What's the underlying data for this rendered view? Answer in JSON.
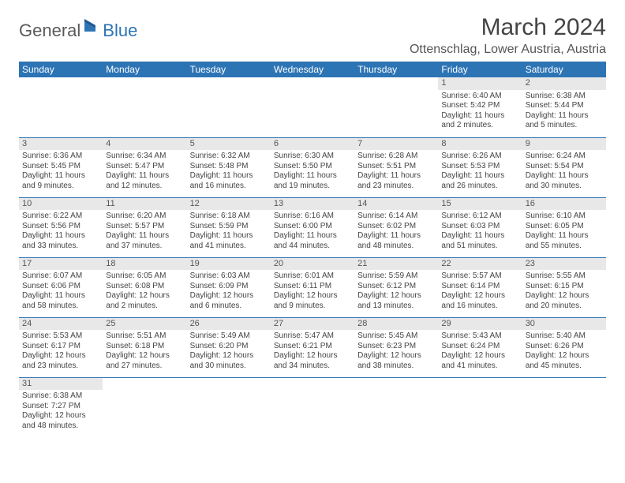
{
  "logo": {
    "text1": "General",
    "text2": "Blue"
  },
  "title": "March 2024",
  "location": "Ottenschlag, Lower Austria, Austria",
  "colors": {
    "header_bg": "#2d74b5",
    "header_fg": "#ffffff",
    "daynum_bg": "#e8e8e8",
    "border": "#2d74b5"
  },
  "weekdays": [
    "Sunday",
    "Monday",
    "Tuesday",
    "Wednesday",
    "Thursday",
    "Friday",
    "Saturday"
  ],
  "weeks": [
    [
      {
        "n": "",
        "sr": "",
        "ss": "",
        "dl": ""
      },
      {
        "n": "",
        "sr": "",
        "ss": "",
        "dl": ""
      },
      {
        "n": "",
        "sr": "",
        "ss": "",
        "dl": ""
      },
      {
        "n": "",
        "sr": "",
        "ss": "",
        "dl": ""
      },
      {
        "n": "",
        "sr": "",
        "ss": "",
        "dl": ""
      },
      {
        "n": "1",
        "sr": "Sunrise: 6:40 AM",
        "ss": "Sunset: 5:42 PM",
        "dl": "Daylight: 11 hours and 2 minutes."
      },
      {
        "n": "2",
        "sr": "Sunrise: 6:38 AM",
        "ss": "Sunset: 5:44 PM",
        "dl": "Daylight: 11 hours and 5 minutes."
      }
    ],
    [
      {
        "n": "3",
        "sr": "Sunrise: 6:36 AM",
        "ss": "Sunset: 5:45 PM",
        "dl": "Daylight: 11 hours and 9 minutes."
      },
      {
        "n": "4",
        "sr": "Sunrise: 6:34 AM",
        "ss": "Sunset: 5:47 PM",
        "dl": "Daylight: 11 hours and 12 minutes."
      },
      {
        "n": "5",
        "sr": "Sunrise: 6:32 AM",
        "ss": "Sunset: 5:48 PM",
        "dl": "Daylight: 11 hours and 16 minutes."
      },
      {
        "n": "6",
        "sr": "Sunrise: 6:30 AM",
        "ss": "Sunset: 5:50 PM",
        "dl": "Daylight: 11 hours and 19 minutes."
      },
      {
        "n": "7",
        "sr": "Sunrise: 6:28 AM",
        "ss": "Sunset: 5:51 PM",
        "dl": "Daylight: 11 hours and 23 minutes."
      },
      {
        "n": "8",
        "sr": "Sunrise: 6:26 AM",
        "ss": "Sunset: 5:53 PM",
        "dl": "Daylight: 11 hours and 26 minutes."
      },
      {
        "n": "9",
        "sr": "Sunrise: 6:24 AM",
        "ss": "Sunset: 5:54 PM",
        "dl": "Daylight: 11 hours and 30 minutes."
      }
    ],
    [
      {
        "n": "10",
        "sr": "Sunrise: 6:22 AM",
        "ss": "Sunset: 5:56 PM",
        "dl": "Daylight: 11 hours and 33 minutes."
      },
      {
        "n": "11",
        "sr": "Sunrise: 6:20 AM",
        "ss": "Sunset: 5:57 PM",
        "dl": "Daylight: 11 hours and 37 minutes."
      },
      {
        "n": "12",
        "sr": "Sunrise: 6:18 AM",
        "ss": "Sunset: 5:59 PM",
        "dl": "Daylight: 11 hours and 41 minutes."
      },
      {
        "n": "13",
        "sr": "Sunrise: 6:16 AM",
        "ss": "Sunset: 6:00 PM",
        "dl": "Daylight: 11 hours and 44 minutes."
      },
      {
        "n": "14",
        "sr": "Sunrise: 6:14 AM",
        "ss": "Sunset: 6:02 PM",
        "dl": "Daylight: 11 hours and 48 minutes."
      },
      {
        "n": "15",
        "sr": "Sunrise: 6:12 AM",
        "ss": "Sunset: 6:03 PM",
        "dl": "Daylight: 11 hours and 51 minutes."
      },
      {
        "n": "16",
        "sr": "Sunrise: 6:10 AM",
        "ss": "Sunset: 6:05 PM",
        "dl": "Daylight: 11 hours and 55 minutes."
      }
    ],
    [
      {
        "n": "17",
        "sr": "Sunrise: 6:07 AM",
        "ss": "Sunset: 6:06 PM",
        "dl": "Daylight: 11 hours and 58 minutes."
      },
      {
        "n": "18",
        "sr": "Sunrise: 6:05 AM",
        "ss": "Sunset: 6:08 PM",
        "dl": "Daylight: 12 hours and 2 minutes."
      },
      {
        "n": "19",
        "sr": "Sunrise: 6:03 AM",
        "ss": "Sunset: 6:09 PM",
        "dl": "Daylight: 12 hours and 6 minutes."
      },
      {
        "n": "20",
        "sr": "Sunrise: 6:01 AM",
        "ss": "Sunset: 6:11 PM",
        "dl": "Daylight: 12 hours and 9 minutes."
      },
      {
        "n": "21",
        "sr": "Sunrise: 5:59 AM",
        "ss": "Sunset: 6:12 PM",
        "dl": "Daylight: 12 hours and 13 minutes."
      },
      {
        "n": "22",
        "sr": "Sunrise: 5:57 AM",
        "ss": "Sunset: 6:14 PM",
        "dl": "Daylight: 12 hours and 16 minutes."
      },
      {
        "n": "23",
        "sr": "Sunrise: 5:55 AM",
        "ss": "Sunset: 6:15 PM",
        "dl": "Daylight: 12 hours and 20 minutes."
      }
    ],
    [
      {
        "n": "24",
        "sr": "Sunrise: 5:53 AM",
        "ss": "Sunset: 6:17 PM",
        "dl": "Daylight: 12 hours and 23 minutes."
      },
      {
        "n": "25",
        "sr": "Sunrise: 5:51 AM",
        "ss": "Sunset: 6:18 PM",
        "dl": "Daylight: 12 hours and 27 minutes."
      },
      {
        "n": "26",
        "sr": "Sunrise: 5:49 AM",
        "ss": "Sunset: 6:20 PM",
        "dl": "Daylight: 12 hours and 30 minutes."
      },
      {
        "n": "27",
        "sr": "Sunrise: 5:47 AM",
        "ss": "Sunset: 6:21 PM",
        "dl": "Daylight: 12 hours and 34 minutes."
      },
      {
        "n": "28",
        "sr": "Sunrise: 5:45 AM",
        "ss": "Sunset: 6:23 PM",
        "dl": "Daylight: 12 hours and 38 minutes."
      },
      {
        "n": "29",
        "sr": "Sunrise: 5:43 AM",
        "ss": "Sunset: 6:24 PM",
        "dl": "Daylight: 12 hours and 41 minutes."
      },
      {
        "n": "30",
        "sr": "Sunrise: 5:40 AM",
        "ss": "Sunset: 6:26 PM",
        "dl": "Daylight: 12 hours and 45 minutes."
      }
    ],
    [
      {
        "n": "31",
        "sr": "Sunrise: 6:38 AM",
        "ss": "Sunset: 7:27 PM",
        "dl": "Daylight: 12 hours and 48 minutes."
      },
      {
        "n": "",
        "sr": "",
        "ss": "",
        "dl": ""
      },
      {
        "n": "",
        "sr": "",
        "ss": "",
        "dl": ""
      },
      {
        "n": "",
        "sr": "",
        "ss": "",
        "dl": ""
      },
      {
        "n": "",
        "sr": "",
        "ss": "",
        "dl": ""
      },
      {
        "n": "",
        "sr": "",
        "ss": "",
        "dl": ""
      },
      {
        "n": "",
        "sr": "",
        "ss": "",
        "dl": ""
      }
    ]
  ]
}
